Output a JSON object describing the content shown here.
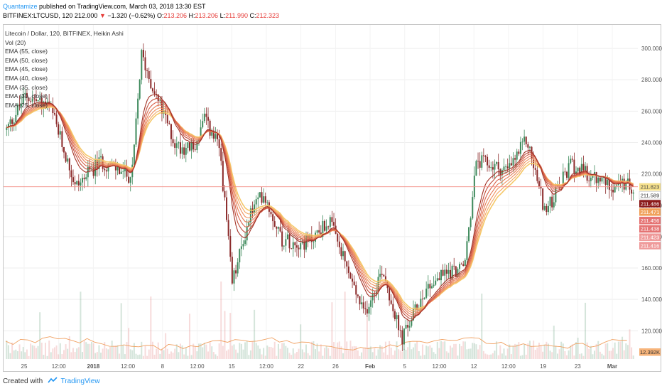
{
  "header": {
    "author": "Quantamize",
    "published": "published on TradingView.com, March 03, 2018 13:30 EST",
    "symbol": "BITFINEX:LTCUSD, 120",
    "last": "212.000",
    "change": "−1.320 (−0.62%)",
    "o_label": "O:",
    "o": "213.206",
    "h_label": "H:",
    "h": "213.206",
    "l_label": "L:",
    "l": "211.990",
    "c_label": "C:",
    "c": "212.323"
  },
  "legend": [
    "Litecoin / Dollar, 120, BITFINEX, Heikin Ashi",
    "Vol (20)",
    "EMA (55, close)",
    "EMA (50, close)",
    "EMA (45, close)",
    "EMA (40, close)",
    "EMA (35, close)",
    "EMA (30, close)",
    "EMA (25, close)"
  ],
  "footer": {
    "created": "Created with",
    "brand": "TradingView"
  },
  "colors": {
    "up": "#3e8a5c",
    "down": "#8b2a2a",
    "grid": "#eeeeee",
    "hline": "#f28b82"
  },
  "chart_data": {
    "type": "candlestick",
    "x_ticks": [
      "25",
      "12:00",
      "2018",
      "12:00",
      "8",
      "12:00",
      "15",
      "12:00",
      "22",
      "26",
      "Feb",
      "5",
      "12:00",
      "12",
      "12:00",
      "19",
      "23",
      "Mar"
    ],
    "y_ticks": [
      120,
      140,
      160,
      180,
      200,
      220,
      240,
      260,
      280,
      300
    ],
    "ylim": [
      102,
      315
    ],
    "price_path": [
      [
        0,
        248
      ],
      [
        0.03,
        270
      ],
      [
        0.07,
        262
      ],
      [
        0.11,
        212
      ],
      [
        0.15,
        228
      ],
      [
        0.2,
        218
      ],
      [
        0.215,
        296
      ],
      [
        0.24,
        268
      ],
      [
        0.27,
        238
      ],
      [
        0.3,
        236
      ],
      [
        0.315,
        255
      ],
      [
        0.34,
        236
      ],
      [
        0.36,
        150
      ],
      [
        0.39,
        196
      ],
      [
        0.41,
        208
      ],
      [
        0.44,
        178
      ],
      [
        0.48,
        176
      ],
      [
        0.515,
        190
      ],
      [
        0.57,
        130
      ],
      [
        0.6,
        160
      ],
      [
        0.63,
        114
      ],
      [
        0.67,
        148
      ],
      [
        0.7,
        157
      ],
      [
        0.73,
        160
      ],
      [
        0.75,
        228
      ],
      [
        0.8,
        222
      ],
      [
        0.83,
        242
      ],
      [
        0.86,
        195
      ],
      [
        0.9,
        226
      ],
      [
        0.94,
        216
      ],
      [
        0.97,
        213
      ],
      [
        1,
        212
      ]
    ],
    "volume_k": 12.392,
    "price_labels": [
      {
        "value": "211.823",
        "bg": "#f5e08c",
        "fg": "#444444"
      },
      {
        "value": "211.589",
        "bg": "#ffffff",
        "fg": "#333333"
      },
      {
        "value": "211.486",
        "bg": "#8b1a1a",
        "fg": "#ffffff"
      },
      {
        "value": "211.471",
        "bg": "#f0a05a",
        "fg": "#ffffff"
      },
      {
        "value": "211.456",
        "bg": "#e57373",
        "fg": "#ffffff"
      },
      {
        "value": "211.438",
        "bg": "#e57373",
        "fg": "#ffffff"
      },
      {
        "value": "211.423",
        "bg": "#ef9a9a",
        "fg": "#ffffff"
      },
      {
        "value": "211.416",
        "bg": "#ef9a9a",
        "fg": "#ffffff"
      }
    ],
    "volume_label": "12.392K",
    "ema_colors": [
      "#f5c86a",
      "#f3a763",
      "#ef8f5c",
      "#e57a54",
      "#d9624a",
      "#c24d3c",
      "#a33226"
    ]
  }
}
